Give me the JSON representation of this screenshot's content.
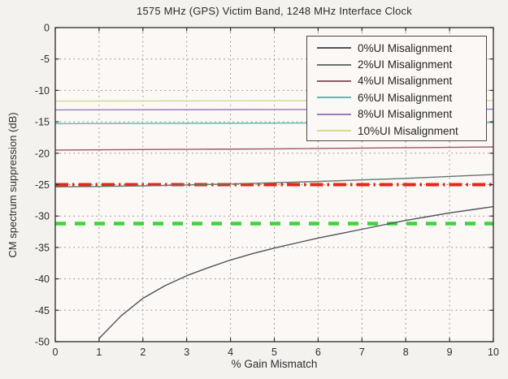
{
  "figure": {
    "background": "#f4f2ef",
    "plot_background": "#fbf8f5",
    "border_color": "#2a2a2a",
    "grid_color": "#8c8c8c",
    "text_color": "#2e2e2e"
  },
  "chart_data": {
    "type": "line",
    "title": "1575 MHz (GPS) Victim Band, 1248 MHz Interface Clock",
    "xlabel": "% Gain Mismatch",
    "ylabel": "CM spectrum suppression (dB)",
    "xlim": [
      0,
      10
    ],
    "ylim": [
      -50,
      0
    ],
    "xticks": [
      0,
      1,
      2,
      3,
      4,
      5,
      6,
      7,
      8,
      9,
      10
    ],
    "yticks": [
      0,
      -5,
      -10,
      -15,
      -20,
      -25,
      -30,
      -35,
      -40,
      -45,
      -50
    ],
    "grid": true,
    "grid_style": "dotted",
    "legend_position": "top-right",
    "series": [
      {
        "name": "0%UI Misalignment",
        "color": "#4d545c",
        "x": [
          1,
          1.5,
          2,
          2.5,
          3,
          3.5,
          4,
          4.5,
          5,
          5.5,
          6,
          6.5,
          7,
          7.5,
          8,
          8.5,
          9,
          9.5,
          10
        ],
        "y": [
          -49.5,
          -45.9,
          -43.1,
          -41.1,
          -39.5,
          -38.2,
          -37,
          -36,
          -35.1,
          -34.3,
          -33.5,
          -32.8,
          -32.1,
          -31.4,
          -30.7,
          -30.1,
          -29.5,
          -29,
          -28.5
        ]
      },
      {
        "name": "2%UI Misalignment",
        "color": "#64756b",
        "x": [
          0,
          1,
          2,
          3,
          4,
          5,
          6,
          7,
          8,
          9,
          10
        ],
        "y": [
          -25.35,
          -25.3,
          -25.2,
          -25.05,
          -24.9,
          -24.7,
          -24.5,
          -24.25,
          -24,
          -23.7,
          -23.4
        ]
      },
      {
        "name": "4%UI Misalignment",
        "color": "#9e5566",
        "x": [
          0,
          5,
          10
        ],
        "y": [
          -19.5,
          -19.3,
          -19.0
        ]
      },
      {
        "name": "6%UI Misalignment",
        "color": "#5cbcb1",
        "x": [
          0,
          10
        ],
        "y": [
          -15.3,
          -15.1
        ]
      },
      {
        "name": "8%UI Misalignment",
        "color": "#9a7cba",
        "x": [
          0,
          10
        ],
        "y": [
          -13.1,
          -13.0
        ]
      },
      {
        "name": "10%UI Misalignment",
        "color": "#d2da94",
        "x": [
          0,
          10
        ],
        "y": [
          -11.7,
          -11.6
        ]
      }
    ],
    "reference_lines": [
      {
        "name": "red-threshold",
        "y": -25,
        "color": "#e6271c",
        "style": "dash-dot",
        "width": 4
      },
      {
        "name": "green-threshold",
        "y": -31.2,
        "color": "#3dd43d",
        "style": "dashed",
        "width": 4.5
      }
    ]
  }
}
